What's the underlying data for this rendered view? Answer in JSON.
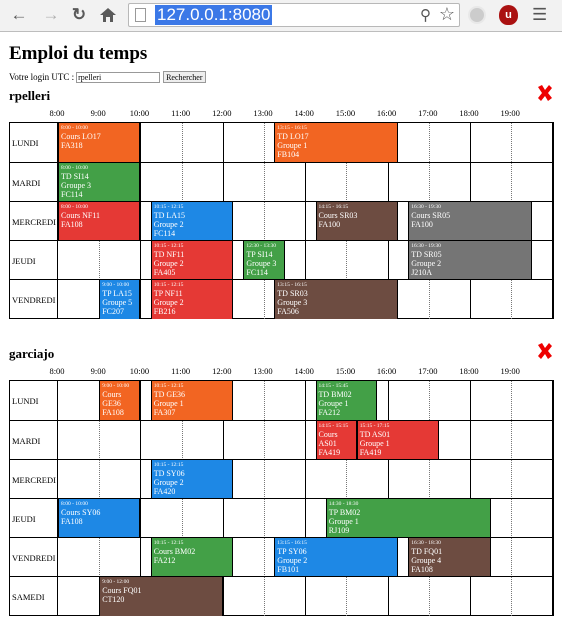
{
  "browser": {
    "url": "127.0.0.1:8080"
  },
  "page": {
    "title": "Emploi du temps",
    "login_label": "Votre login UTC :",
    "login_value": "rpelleri",
    "search_button": "Rechercher"
  },
  "colors": {
    "orange": "#f26522",
    "green": "#43a047",
    "red": "#e53935",
    "blue": "#1e88e5",
    "brown": "#6d4c41",
    "gray": "#757575"
  },
  "hours": [
    "8:00",
    "9:00",
    "10:00",
    "11:00",
    "12:00",
    "13:00",
    "14:00",
    "15:00",
    "16:00",
    "17:00",
    "18:00",
    "19:00"
  ],
  "schedules": [
    {
      "user": "rpelleri",
      "days": [
        {
          "name": "LUNDI",
          "events": [
            {
              "time": "8:00 - 10:00",
              "lines": [
                "Cours LO17",
                "FA318"
              ],
              "color": "orange",
              "start": 8,
              "end": 10
            },
            {
              "time": "13:15 - 16:15",
              "lines": [
                "TD LO17",
                "Groupe 1",
                "FB104"
              ],
              "color": "orange",
              "start": 13.25,
              "end": 16.25
            }
          ]
        },
        {
          "name": "MARDI",
          "events": [
            {
              "time": "8:00 - 10:00",
              "lines": [
                "TD SI14",
                "Groupe 3",
                "FC114"
              ],
              "color": "green",
              "start": 8,
              "end": 10
            }
          ]
        },
        {
          "name": "MERCREDI",
          "events": [
            {
              "time": "8:00 - 10:00",
              "lines": [
                "Cours NF11",
                "FA108"
              ],
              "color": "red",
              "start": 8,
              "end": 10
            },
            {
              "time": "10:15 - 12:15",
              "lines": [
                "TD LA15",
                "Groupe 2",
                "FC114"
              ],
              "color": "blue",
              "start": 10.25,
              "end": 12.25
            },
            {
              "time": "14:15 - 16:15",
              "lines": [
                "Cours SR03",
                "FA100"
              ],
              "color": "brown",
              "start": 14.25,
              "end": 16.25
            },
            {
              "time": "16:30 - 19:30",
              "lines": [
                "Cours SR05",
                "FA100"
              ],
              "color": "gray",
              "start": 16.5,
              "end": 19.5
            }
          ]
        },
        {
          "name": "JEUDI",
          "events": [
            {
              "time": "10:15 - 12:15",
              "lines": [
                "TD NF11",
                "Groupe 2",
                "FA405"
              ],
              "color": "red",
              "start": 10.25,
              "end": 12.25
            },
            {
              "time": "12:30 - 13:30",
              "lines": [
                "TP SI14",
                "Groupe 3",
                "FC114"
              ],
              "color": "green",
              "start": 12.5,
              "end": 13.5
            },
            {
              "time": "16:30 - 19:30",
              "lines": [
                "TD SR05",
                "Groupe 2",
                "J210A"
              ],
              "color": "gray",
              "start": 16.5,
              "end": 19.5
            }
          ]
        },
        {
          "name": "VENDREDI",
          "events": [
            {
              "time": "9:00 - 10:00",
              "lines": [
                "TP LA15",
                "Groupe 5",
                "FC207"
              ],
              "color": "blue",
              "start": 9,
              "end": 10
            },
            {
              "time": "10:15 - 12:15",
              "lines": [
                "TP NF11",
                "Groupe 2",
                "FB216"
              ],
              "color": "red",
              "start": 10.25,
              "end": 12.25
            },
            {
              "time": "13:15 - 16:15",
              "lines": [
                "TD SR03",
                "Groupe 3",
                "FA506"
              ],
              "color": "brown",
              "start": 13.25,
              "end": 16.25
            }
          ]
        }
      ]
    },
    {
      "user": "garciajo",
      "days": [
        {
          "name": "LUNDI",
          "events": [
            {
              "time": "9:00 - 10:00",
              "lines": [
                "Cours",
                "GE36",
                "FA108"
              ],
              "color": "orange",
              "start": 9,
              "end": 10
            },
            {
              "time": "10:15 - 12:15",
              "lines": [
                "TD GE36",
                "Groupe 1",
                "FA307"
              ],
              "color": "orange",
              "start": 10.25,
              "end": 12.25
            },
            {
              "time": "14:15 - 15:45",
              "lines": [
                "TD BM02",
                "Groupe 1",
                "FA212"
              ],
              "color": "green",
              "start": 14.25,
              "end": 15.75
            }
          ]
        },
        {
          "name": "MARDI",
          "events": [
            {
              "time": "14:15 - 15:15",
              "lines": [
                "Cours",
                "AS01",
                "FA419"
              ],
              "color": "red",
              "start": 14.25,
              "end": 15.25
            },
            {
              "time": "15:15 - 17:15",
              "lines": [
                "TD AS01",
                "Groupe 1",
                "FA419"
              ],
              "color": "red",
              "start": 15.25,
              "end": 17.25
            }
          ]
        },
        {
          "name": "MERCREDI",
          "events": [
            {
              "time": "10:15 - 12:15",
              "lines": [
                "TD SY06",
                "Groupe 2",
                "FA420"
              ],
              "color": "blue",
              "start": 10.25,
              "end": 12.25
            }
          ]
        },
        {
          "name": "JEUDI",
          "events": [
            {
              "time": "8:00 - 10:00",
              "lines": [
                "Cours SY06",
                "FA108"
              ],
              "color": "blue",
              "start": 8,
              "end": 10
            },
            {
              "time": "14:30 - 18:30",
              "lines": [
                "TP BM02",
                "Groupe 1",
                "RJ109"
              ],
              "color": "green",
              "start": 14.5,
              "end": 18.5
            }
          ]
        },
        {
          "name": "VENDREDI",
          "events": [
            {
              "time": "10:15 - 12:15",
              "lines": [
                "Cours BM02",
                "FA212"
              ],
              "color": "green",
              "start": 10.25,
              "end": 12.25
            },
            {
              "time": "13:15 - 16:15",
              "lines": [
                "TP SY06",
                "Groupe 2",
                "FB101"
              ],
              "color": "blue",
              "start": 13.25,
              "end": 16.25
            },
            {
              "time": "16:30 - 18:30",
              "lines": [
                "TD FQ01",
                "Groupe 4",
                "FA108"
              ],
              "color": "brown",
              "start": 16.5,
              "end": 18.5
            }
          ]
        },
        {
          "name": "SAMEDI",
          "events": [
            {
              "time": "9:00 - 12:00",
              "lines": [
                "Cours FQ01",
                "CT120"
              ],
              "color": "brown",
              "start": 9,
              "end": 12
            }
          ]
        }
      ]
    }
  ]
}
